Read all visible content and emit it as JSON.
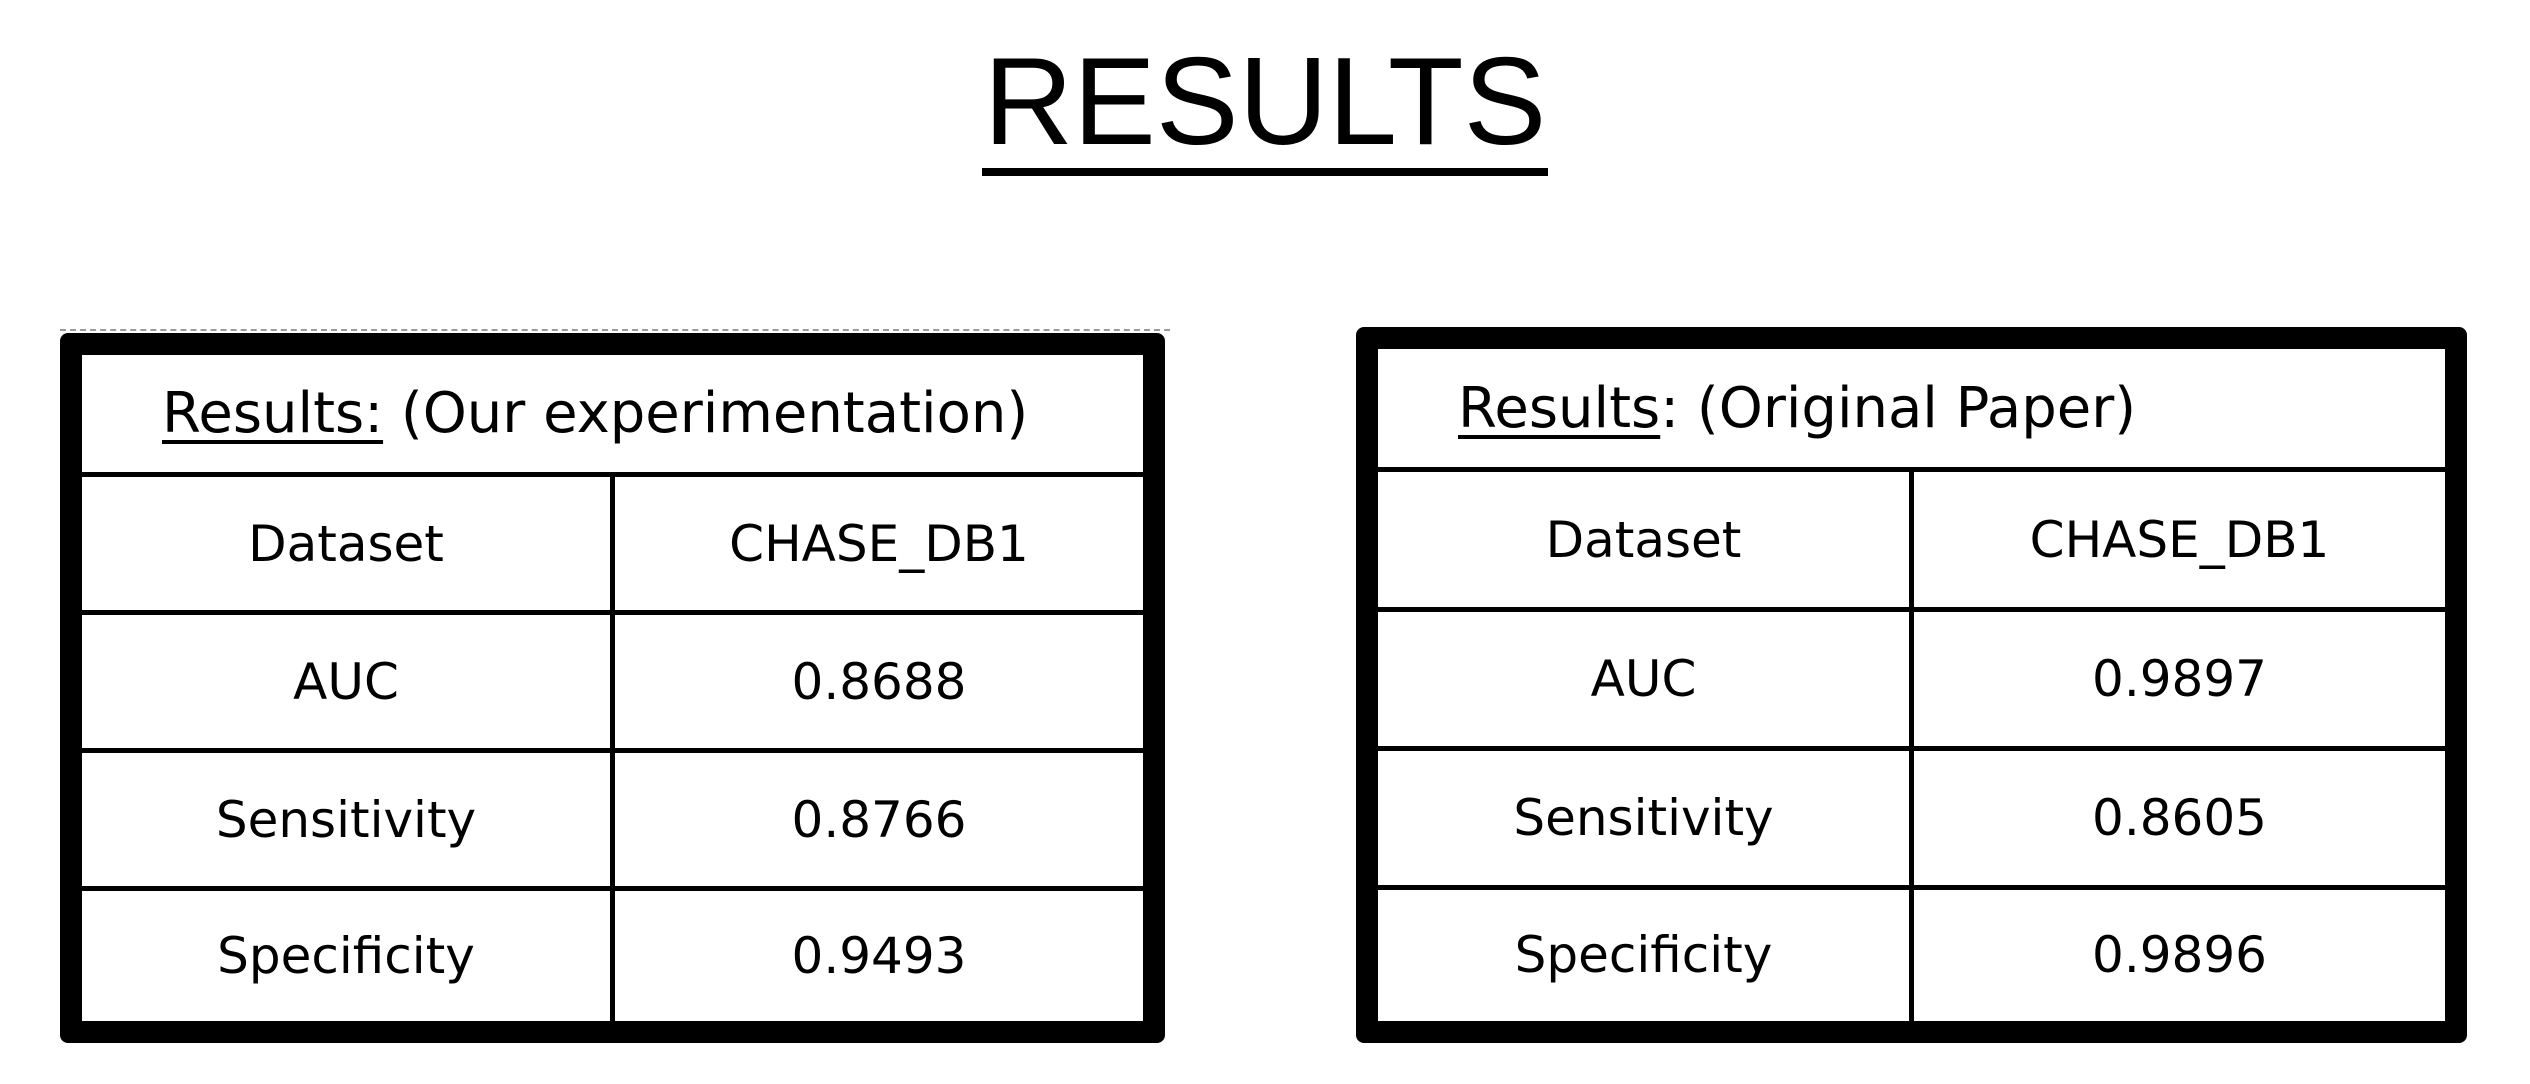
{
  "page": {
    "title": "RESULTS"
  },
  "tables": [
    {
      "caption_label": "Results:",
      "caption_rest": " (Our experimentation)",
      "header": [
        "Dataset",
        "CHASE_DB1"
      ],
      "rows": [
        [
          "AUC",
          "0.8688"
        ],
        [
          "Sensitivity",
          "0.8766"
        ],
        [
          "Specificity",
          "0.9493"
        ]
      ]
    },
    {
      "caption_label": "Results",
      "caption_rest": ": (Original Paper)",
      "header": [
        "Dataset",
        "CHASE_DB1"
      ],
      "rows": [
        [
          "AUC",
          "0.9897"
        ],
        [
          "Sensitivity",
          "0.8605"
        ],
        [
          "Specificity",
          "0.9896"
        ]
      ]
    }
  ]
}
